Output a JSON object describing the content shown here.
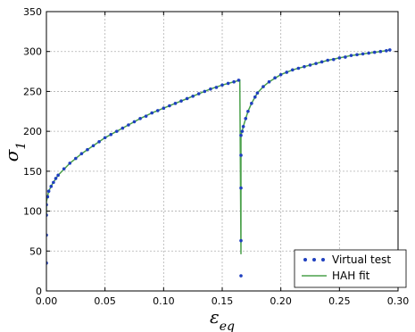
{
  "chart_data": {
    "type": "line",
    "xlabel": "ε_eq",
    "ylabel": "σ_1",
    "xlim": [
      0,
      0.3
    ],
    "ylim": [
      0,
      350
    ],
    "x_ticks": [
      "0.00",
      "0.05",
      "0.10",
      "0.15",
      "0.20",
      "0.25",
      "0.30"
    ],
    "y_ticks": [
      "0",
      "50",
      "100",
      "150",
      "200",
      "250",
      "300",
      "350"
    ],
    "grid": true,
    "legend": "bottom-right",
    "series": [
      {
        "name": "Virtual test",
        "style": "scatter",
        "color": "#1f3fbf",
        "x": [
          0.0,
          0.0,
          0.0,
          0.0,
          0.001,
          0.002,
          0.004,
          0.006,
          0.008,
          0.01,
          0.015,
          0.02,
          0.025,
          0.03,
          0.035,
          0.04,
          0.045,
          0.05,
          0.055,
          0.06,
          0.065,
          0.07,
          0.075,
          0.08,
          0.085,
          0.09,
          0.095,
          0.1,
          0.105,
          0.11,
          0.115,
          0.12,
          0.125,
          0.13,
          0.135,
          0.14,
          0.145,
          0.15,
          0.155,
          0.16,
          0.164,
          0.166,
          0.166,
          0.166,
          0.166,
          0.166,
          0.167,
          0.168,
          0.17,
          0.172,
          0.175,
          0.178,
          0.18,
          0.185,
          0.19,
          0.195,
          0.2,
          0.205,
          0.21,
          0.215,
          0.22,
          0.225,
          0.23,
          0.235,
          0.24,
          0.245,
          0.25,
          0.255,
          0.26,
          0.265,
          0.27,
          0.275,
          0.28,
          0.285,
          0.29,
          0.293
        ],
        "y": [
          35,
          70,
          95,
          108,
          118,
          125,
          131,
          136,
          141,
          145,
          153,
          160,
          166,
          172,
          177,
          182,
          187,
          192,
          196,
          200,
          204,
          208,
          212,
          216,
          219,
          223,
          226,
          229,
          232,
          235,
          238,
          241,
          244,
          247,
          250,
          253,
          255,
          258,
          260,
          262,
          264,
          19,
          63,
          129,
          170,
          195,
          200,
          206,
          216,
          225,
          235,
          243,
          248,
          256,
          262,
          267,
          271,
          274,
          277,
          279,
          281,
          283,
          285,
          287,
          289,
          290,
          292,
          293,
          295,
          296,
          297,
          298,
          299,
          300,
          301,
          302
        ]
      },
      {
        "name": "HAH fit",
        "style": "line",
        "color": "#4aa04a",
        "x": [
          0.0,
          0.0,
          0.002,
          0.005,
          0.01,
          0.02,
          0.03,
          0.04,
          0.05,
          0.06,
          0.07,
          0.08,
          0.09,
          0.1,
          0.11,
          0.12,
          0.13,
          0.14,
          0.15,
          0.16,
          0.165,
          0.166,
          0.166,
          0.167,
          0.168,
          0.17,
          0.172,
          0.175,
          0.178,
          0.18,
          0.185,
          0.19,
          0.2,
          0.21,
          0.22,
          0.23,
          0.24,
          0.25,
          0.26,
          0.27,
          0.28,
          0.29,
          0.293
        ],
        "y": [
          95,
          112,
          125,
          134,
          145,
          160,
          172,
          182,
          192,
          200,
          208,
          216,
          223,
          229,
          235,
          241,
          247,
          253,
          258,
          262,
          264,
          46,
          195,
          200,
          206,
          216,
          225,
          235,
          243,
          248,
          256,
          262,
          271,
          277,
          281,
          285,
          289,
          292,
          295,
          297,
          299,
          301,
          302
        ]
      }
    ]
  }
}
